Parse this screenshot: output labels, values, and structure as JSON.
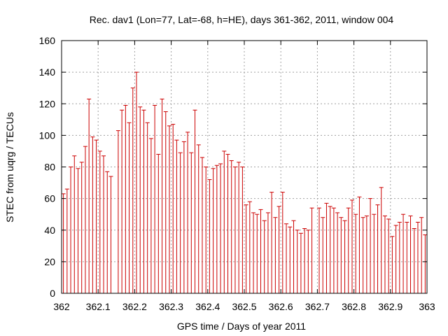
{
  "chart_data": {
    "type": "bar",
    "title": "Rec. dav1 (Lon=77, Lat=-68, h=HE), days 361-362, 2011, window 004",
    "xlabel": "GPS time / Days of year 2011",
    "ylabel": "STEC from uqrg / TECUs",
    "xlim": [
      362,
      363
    ],
    "ylim": [
      0,
      160
    ],
    "xticks": [
      "362",
      "362.1",
      "362.2",
      "362.3",
      "362.4",
      "362.5",
      "362.6",
      "362.7",
      "362.8",
      "362.9",
      "363"
    ],
    "yticks": [
      "0",
      "20",
      "40",
      "60",
      "80",
      "100",
      "120",
      "140",
      "160"
    ],
    "grid": true,
    "color": "#cc0000",
    "x": [
      362.005,
      362.015,
      362.025,
      362.035,
      362.045,
      362.055,
      362.065,
      362.075,
      362.085,
      362.095,
      362.105,
      362.115,
      362.125,
      362.135,
      362.155,
      362.165,
      362.175,
      362.185,
      362.195,
      362.205,
      362.215,
      362.225,
      362.235,
      362.245,
      362.255,
      362.265,
      362.275,
      362.285,
      362.295,
      362.305,
      362.315,
      362.325,
      362.335,
      362.345,
      362.355,
      362.365,
      362.375,
      362.385,
      362.395,
      362.405,
      362.415,
      362.425,
      362.435,
      362.445,
      362.455,
      362.465,
      362.475,
      362.485,
      362.495,
      362.505,
      362.515,
      362.525,
      362.535,
      362.545,
      362.555,
      362.565,
      362.575,
      362.585,
      362.595,
      362.605,
      362.615,
      362.625,
      362.635,
      362.645,
      362.655,
      362.665,
      362.675,
      362.685,
      362.705,
      362.715,
      362.725,
      362.735,
      362.745,
      362.755,
      362.765,
      362.775,
      362.785,
      362.795,
      362.805,
      362.815,
      362.825,
      362.835,
      362.845,
      362.855,
      362.865,
      362.875,
      362.885,
      362.895,
      362.905,
      362.915,
      362.925,
      362.935,
      362.945,
      362.955,
      362.965,
      362.975,
      362.985,
      362.995
    ],
    "values": [
      63,
      66,
      80,
      87,
      79,
      83,
      93,
      123,
      99,
      97,
      90,
      87,
      77,
      74,
      103,
      116,
      119,
      108,
      130,
      140,
      118,
      116,
      108,
      98,
      119,
      88,
      123,
      115,
      106,
      107,
      97,
      89,
      96,
      102,
      89,
      116,
      94,
      86,
      80,
      72,
      79,
      81,
      82,
      90,
      88,
      84,
      80,
      83,
      80,
      56,
      58,
      51,
      50,
      53,
      46,
      51,
      64,
      48,
      55,
      64,
      44,
      42,
      46,
      40,
      38,
      41,
      40,
      54,
      54,
      48,
      57,
      55,
      54,
      51,
      48,
      46,
      54,
      59,
      50,
      61,
      48,
      49,
      60,
      50,
      56,
      67,
      49,
      47,
      36,
      43,
      45,
      50,
      45,
      49,
      41,
      45,
      48,
      37
    ]
  }
}
